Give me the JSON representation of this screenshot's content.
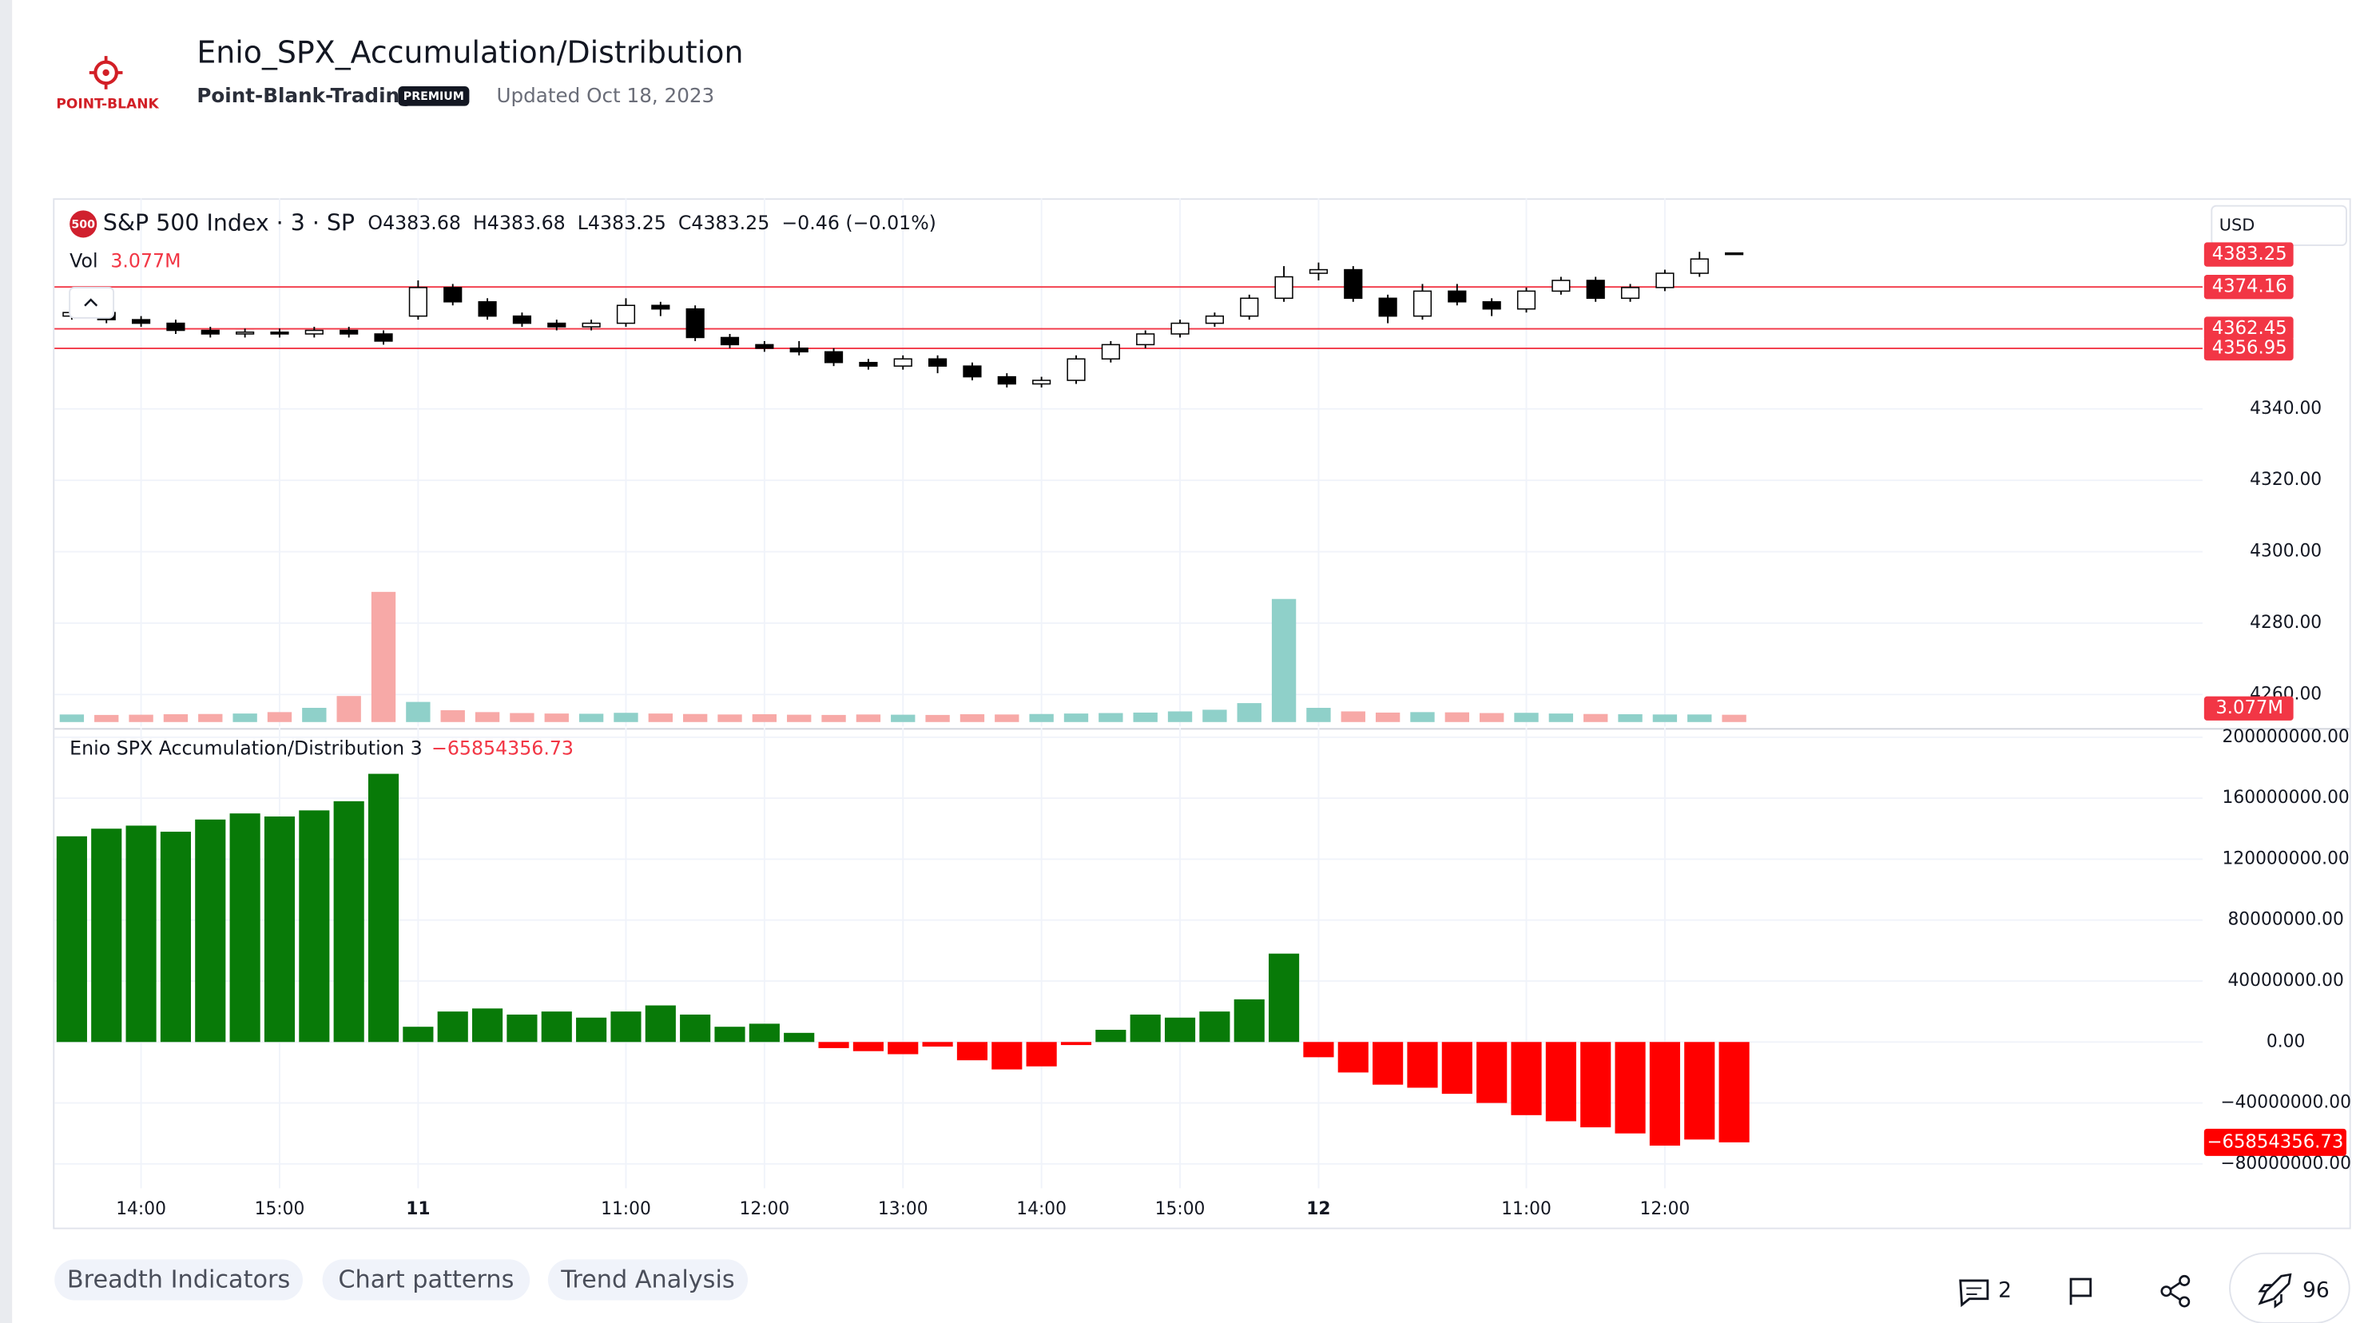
{
  "header": {
    "logo_text": "POINT-BLANK",
    "title": "Enio_SPX_Accumulation/Distribution",
    "author": "Point-Blank-Trading",
    "badge": "PREMIUM",
    "updated": "Updated Oct 18, 2023"
  },
  "chart_data": [
    {
      "type": "candlestick",
      "symbol_badge": "500",
      "title": "S&P 500 Index · 3 · SP",
      "ohlc_text": "O4383.68  H4383.68  L4383.25  C4383.25  −0.46 (−0.01%)",
      "currency": "USD",
      "categories": [
        null,
        null,
        "14:00",
        null,
        null,
        null,
        "15:00",
        null,
        null,
        null,
        "11",
        null,
        null,
        null,
        null,
        null,
        "11:00",
        null,
        null,
        null,
        "12:00",
        null,
        null,
        null,
        "13:00",
        null,
        null,
        null,
        "14:00",
        null,
        null,
        null,
        "15:00",
        null,
        null,
        null,
        "12",
        null,
        null,
        null,
        null,
        null,
        "11:00",
        null,
        null,
        null,
        "12:00",
        null,
        null
      ],
      "open": [
        4366,
        4367,
        4365,
        4364,
        4362,
        4361,
        4361.5,
        4361,
        4362,
        4361,
        4366,
        4374,
        4370,
        4366,
        4364,
        4363,
        4364,
        4369,
        4368,
        4360,
        4358,
        4357,
        4356,
        4353,
        4352,
        4354,
        4352,
        4349,
        4347,
        4348,
        4354,
        4358,
        4361,
        4364,
        4366,
        4371,
        4378,
        4379,
        4371,
        4366,
        4373,
        4370,
        4368,
        4373,
        4376,
        4371,
        4374,
        4378,
        4383.68
      ],
      "high": [
        4368,
        4368,
        4366,
        4365,
        4363,
        4362.5,
        4362.5,
        4363,
        4363,
        4362,
        4376,
        4375,
        4371,
        4367,
        4365,
        4365,
        4371,
        4370,
        4369,
        4361,
        4359,
        4359,
        4357,
        4354,
        4355,
        4355,
        4353,
        4350,
        4349,
        4355,
        4359,
        4362,
        4365,
        4367,
        4372,
        4380,
        4381,
        4380,
        4372,
        4375,
        4375,
        4371,
        4374,
        4377,
        4377,
        4375,
        4379,
        4384,
        4383.68
      ],
      "low": [
        4365,
        4364,
        4363,
        4361,
        4360,
        4360,
        4360,
        4360,
        4360,
        4358,
        4365,
        4369,
        4365,
        4363,
        4362,
        4362,
        4363,
        4366,
        4359,
        4357,
        4356,
        4355,
        4352,
        4351,
        4351,
        4350,
        4348,
        4346,
        4346,
        4347,
        4353,
        4357,
        4360,
        4363,
        4365,
        4370,
        4376,
        4370,
        4364,
        4365,
        4369,
        4366,
        4367,
        4372,
        4370,
        4370,
        4373,
        4377,
        4383.25
      ],
      "close": [
        4367,
        4365,
        4364,
        4362,
        4361,
        4361.5,
        4361,
        4362,
        4361,
        4359,
        4374,
        4370,
        4366,
        4364,
        4363,
        4364,
        4369,
        4368,
        4360,
        4358,
        4357,
        4356,
        4353,
        4352,
        4354,
        4352,
        4349,
        4347,
        4348,
        4354,
        4358,
        4361,
        4364,
        4366,
        4371,
        4377,
        4379,
        4371,
        4366,
        4373,
        4370,
        4368,
        4373,
        4376,
        4371,
        4374,
        4378,
        4382,
        4383.25
      ],
      "up_color": "#ffffff",
      "down_color": "#000000",
      "wick_color": "#000000",
      "ylim": [
        4251,
        4399
      ],
      "yticks": [
        {
          "value": 4260,
          "label": "4260.00"
        },
        {
          "value": 4280,
          "label": "4280.00"
        },
        {
          "value": 4300,
          "label": "4300.00"
        },
        {
          "value": 4320,
          "label": "4320.00"
        },
        {
          "value": 4340,
          "label": "4340.00"
        }
      ],
      "hlines": [
        {
          "value": 4374.16,
          "color": "#f23645"
        },
        {
          "value": 4362.45,
          "color": "#f23645"
        },
        {
          "value": 4356.95,
          "color": "#f23645"
        }
      ],
      "grid": true
    },
    {
      "type": "volume",
      "title": "Vol",
      "last_label": "3.077M",
      "up_color": "#8fd0c9",
      "down_color": "#f7a9a7",
      "values": [
        3.2,
        3.0,
        3.1,
        3.3,
        3.4,
        3.6,
        4.2,
        6.0,
        11.0,
        55.0,
        8.5,
        5.0,
        4.2,
        3.8,
        3.6,
        3.5,
        3.9,
        3.6,
        3.4,
        3.2,
        3.3,
        3.1,
        3.0,
        3.2,
        3.1,
        3.0,
        3.3,
        3.2,
        3.4,
        3.6,
        3.8,
        4.0,
        4.5,
        5.2,
        8.0,
        52.0,
        6.0,
        4.5,
        4.0,
        4.2,
        4.1,
        3.8,
        3.9,
        3.6,
        3.4,
        3.3,
        3.2,
        3.2,
        3.077
      ]
    },
    {
      "type": "bar",
      "title": "Enio SPX Accumulation/Distribution 3",
      "last_label": "−65854356.73",
      "pos_color": "#087a08",
      "neg_color": "#ff0000",
      "values": [
        135000000,
        140000000,
        142000000,
        138000000,
        146000000,
        150000000,
        148000000,
        152000000,
        158000000,
        176000000,
        10000000,
        20000000,
        22000000,
        18000000,
        20000000,
        16000000,
        20000000,
        24000000,
        18000000,
        10000000,
        12000000,
        6000000,
        -4000000,
        -6000000,
        -8000000,
        -3000000,
        -12000000,
        -18000000,
        -16000000,
        -2000000,
        8000000,
        18000000,
        16000000,
        20000000,
        28000000,
        58000000,
        -10000000,
        -20000000,
        -28000000,
        -30000000,
        -34000000,
        -40000000,
        -48000000,
        -52000000,
        -56000000,
        -60000000,
        -68000000,
        -64000000,
        -65854356.73
      ],
      "ylim": [
        -96000000,
        206000000
      ],
      "yticks": [
        {
          "value": -80000000,
          "label": "−80000000.00"
        },
        {
          "value": -40000000,
          "label": "−40000000.00"
        },
        {
          "value": 0,
          "label": "0.00"
        },
        {
          "value": 40000000,
          "label": "40000000.00"
        },
        {
          "value": 80000000,
          "label": "80000000.00"
        },
        {
          "value": 120000000,
          "label": "120000000.00"
        },
        {
          "value": 160000000,
          "label": "160000000.00"
        },
        {
          "value": 200000000,
          "label": "200000000.00"
        }
      ],
      "grid": true
    }
  ],
  "footer": {
    "tags": [
      "Breadth Indicators",
      "Chart patterns",
      "Trend Analysis"
    ],
    "comments": "2",
    "boosts": "96"
  }
}
